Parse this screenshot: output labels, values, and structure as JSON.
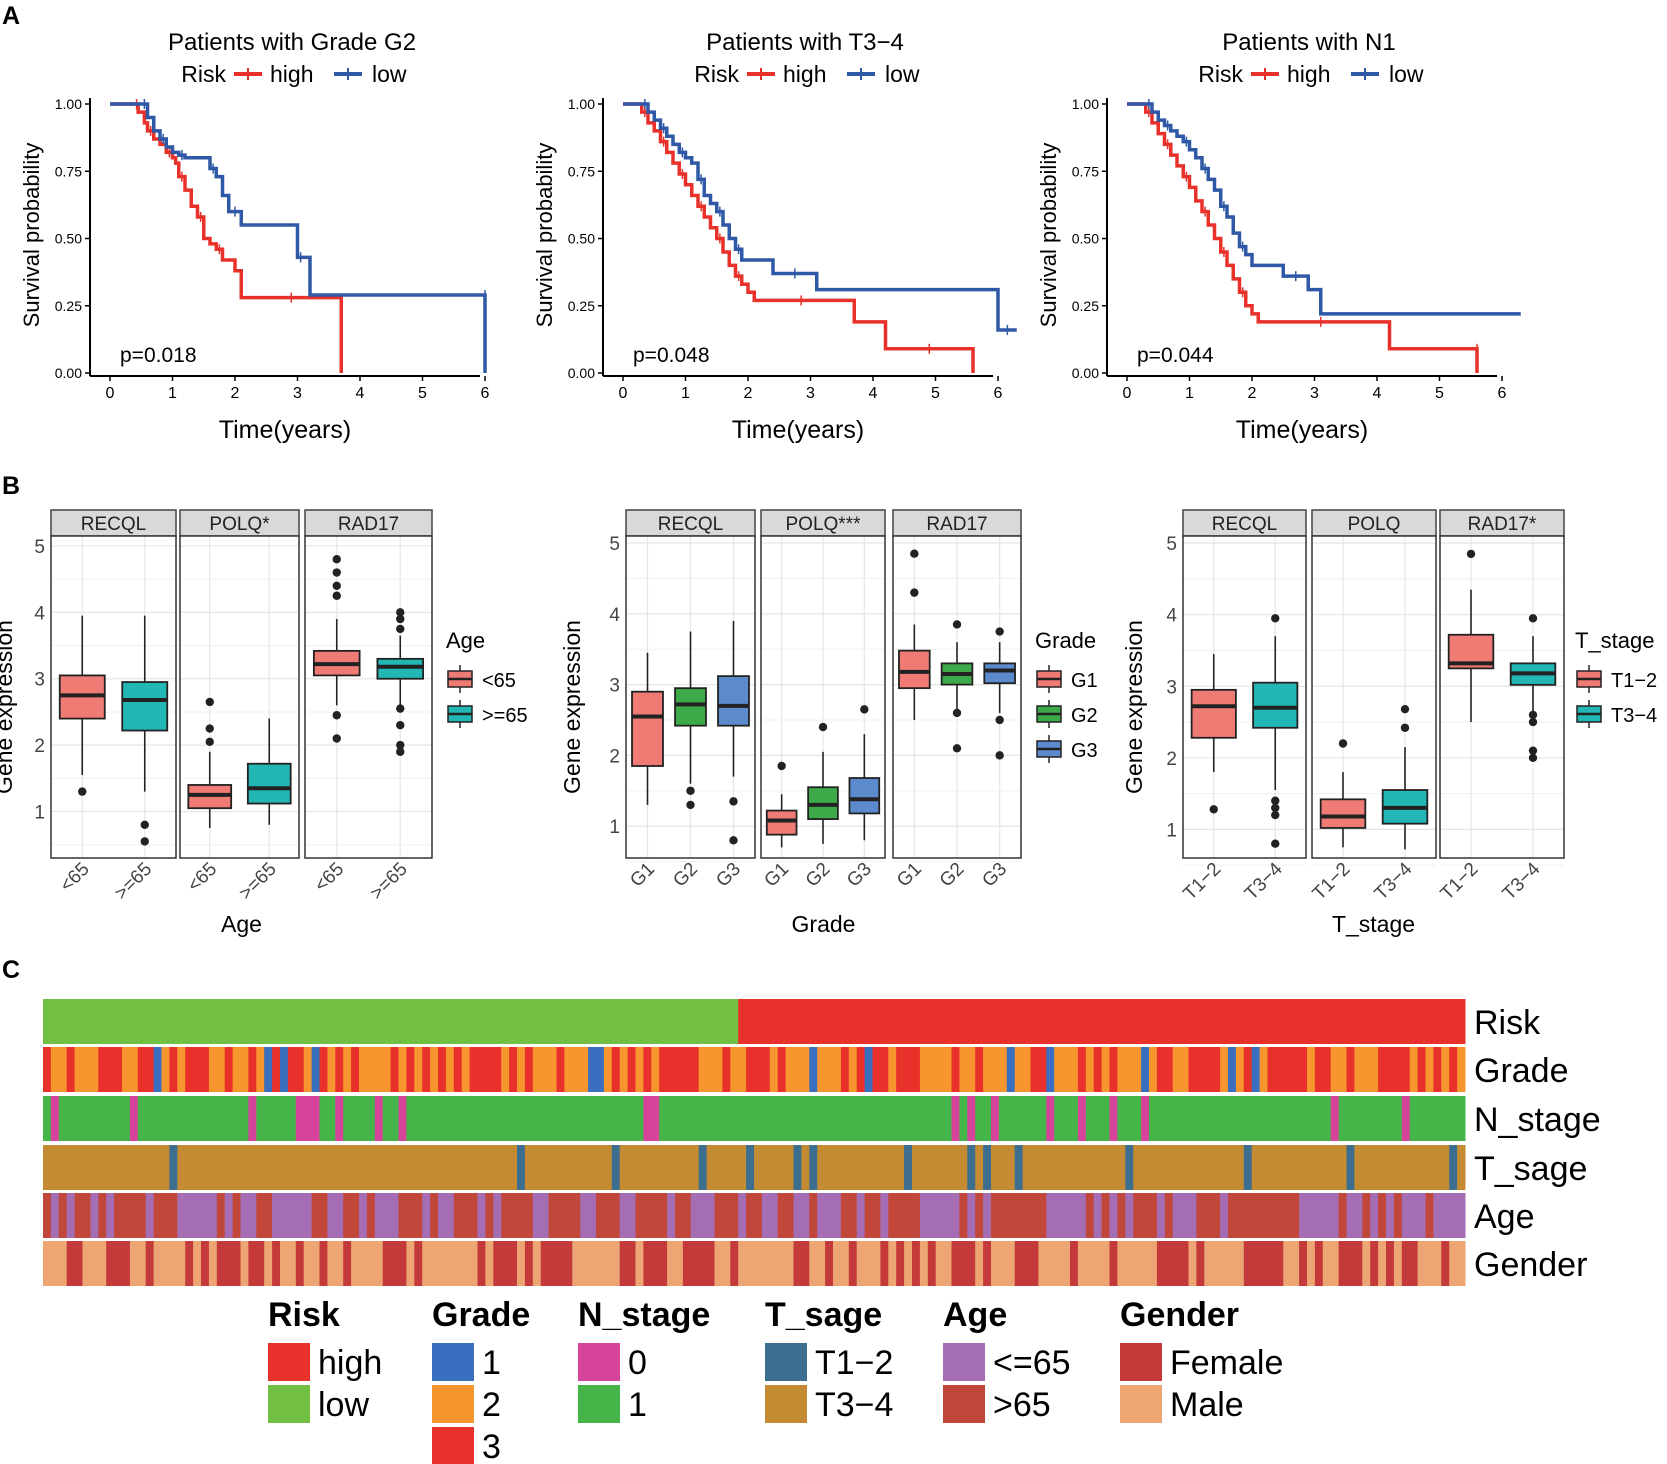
{
  "panel_labels": {
    "a": "A",
    "b": "B",
    "c": "C"
  },
  "colors": {
    "high": "#e8312a",
    "low": "#2f58a6",
    "lt65": "#f07a74",
    "ge65": "#22b7b4",
    "g1": "#f07a74",
    "g2": "#3caa48",
    "g3": "#5b8bcc",
    "t12": "#f07a74",
    "t34": "#22b7b4",
    "strip": "#d9d9d9",
    "grid": "#e6e6e6"
  },
  "km_common": {
    "ylabel": "Survival probability",
    "xlabel": "Time(years)",
    "legend_title": "Risk",
    "legend_high": "high",
    "legend_low": "low",
    "yticks": [
      "0.00",
      "0.25",
      "0.50",
      "0.75",
      "1.00"
    ],
    "xticks": [
      "0",
      "1",
      "2",
      "3",
      "4",
      "5",
      "6"
    ]
  },
  "box_common": {
    "ylabel": "Gene expression",
    "yticks": [
      "1",
      "2",
      "3",
      "4",
      "5"
    ]
  },
  "chart_data": [
    {
      "type": "line",
      "subtype": "kaplan-meier",
      "title": "Patients with Grade G2",
      "pvalue": "p=0.018",
      "xlim": [
        0,
        6.3
      ],
      "ylim": [
        0,
        1
      ],
      "series": [
        {
          "name": "high",
          "x": [
            0.0,
            0.4,
            0.45,
            0.55,
            0.6,
            0.7,
            0.8,
            0.9,
            1.0,
            1.05,
            1.1,
            1.2,
            1.3,
            1.4,
            1.5,
            1.6,
            1.7,
            1.8,
            2.0,
            2.1,
            3.7,
            3.7
          ],
          "y": [
            1.0,
            1.0,
            0.97,
            0.93,
            0.9,
            0.87,
            0.85,
            0.82,
            0.8,
            0.78,
            0.73,
            0.68,
            0.62,
            0.58,
            0.5,
            0.48,
            0.46,
            0.42,
            0.38,
            0.28,
            0.28,
            0.0
          ]
        },
        {
          "name": "low",
          "x": [
            0.0,
            0.5,
            0.6,
            0.7,
            0.8,
            0.9,
            1.0,
            1.1,
            1.2,
            1.3,
            1.6,
            1.7,
            1.8,
            1.9,
            2.1,
            2.9,
            3.0,
            3.1,
            3.2,
            6.0,
            6.0
          ],
          "y": [
            1.0,
            1.0,
            0.95,
            0.9,
            0.87,
            0.84,
            0.82,
            0.81,
            0.8,
            0.8,
            0.76,
            0.73,
            0.66,
            0.6,
            0.55,
            0.55,
            0.43,
            0.43,
            0.29,
            0.29,
            0.0
          ]
        }
      ]
    },
    {
      "type": "line",
      "subtype": "kaplan-meier",
      "title": "Patients with T3−4",
      "pvalue": "p=0.048",
      "xlim": [
        0,
        6.3
      ],
      "ylim": [
        0,
        1
      ],
      "series": [
        {
          "name": "high",
          "x": [
            0.0,
            0.3,
            0.4,
            0.5,
            0.6,
            0.7,
            0.8,
            0.9,
            1.0,
            1.1,
            1.2,
            1.3,
            1.4,
            1.5,
            1.6,
            1.7,
            1.8,
            1.9,
            2.0,
            2.1,
            3.6,
            3.7,
            4.2,
            5.6,
            5.6
          ],
          "y": [
            1.0,
            0.97,
            0.93,
            0.9,
            0.86,
            0.82,
            0.78,
            0.74,
            0.7,
            0.66,
            0.62,
            0.58,
            0.54,
            0.5,
            0.45,
            0.4,
            0.36,
            0.33,
            0.3,
            0.27,
            0.27,
            0.19,
            0.09,
            0.09,
            0.0
          ]
        },
        {
          "name": "low",
          "x": [
            0.0,
            0.3,
            0.4,
            0.5,
            0.6,
            0.7,
            0.8,
            0.9,
            1.0,
            1.1,
            1.2,
            1.3,
            1.4,
            1.5,
            1.6,
            1.7,
            1.8,
            1.9,
            2.0,
            2.4,
            3.1,
            5.9,
            6.0,
            6.3
          ],
          "y": [
            1.0,
            1.0,
            0.97,
            0.94,
            0.91,
            0.88,
            0.85,
            0.82,
            0.8,
            0.78,
            0.72,
            0.66,
            0.63,
            0.6,
            0.55,
            0.5,
            0.46,
            0.42,
            0.42,
            0.37,
            0.31,
            0.31,
            0.16,
            0.16
          ]
        }
      ]
    },
    {
      "type": "line",
      "subtype": "kaplan-meier",
      "title": "Patients with N1",
      "pvalue": "p=0.044",
      "xlim": [
        0,
        6.3
      ],
      "ylim": [
        0,
        1
      ],
      "series": [
        {
          "name": "high",
          "x": [
            0.0,
            0.3,
            0.4,
            0.5,
            0.6,
            0.7,
            0.8,
            0.9,
            1.0,
            1.1,
            1.2,
            1.3,
            1.4,
            1.5,
            1.6,
            1.7,
            1.8,
            1.9,
            2.0,
            2.1,
            4.1,
            4.2,
            5.6,
            5.6
          ],
          "y": [
            1.0,
            0.97,
            0.93,
            0.89,
            0.85,
            0.81,
            0.77,
            0.73,
            0.69,
            0.64,
            0.6,
            0.55,
            0.5,
            0.45,
            0.4,
            0.35,
            0.3,
            0.25,
            0.22,
            0.19,
            0.19,
            0.09,
            0.09,
            0.0
          ]
        },
        {
          "name": "low",
          "x": [
            0.0,
            0.3,
            0.4,
            0.5,
            0.6,
            0.7,
            0.8,
            0.9,
            1.0,
            1.1,
            1.2,
            1.3,
            1.4,
            1.5,
            1.6,
            1.7,
            1.8,
            1.9,
            2.0,
            2.5,
            2.9,
            3.1,
            6.3
          ],
          "y": [
            1.0,
            1.0,
            0.97,
            0.94,
            0.92,
            0.9,
            0.88,
            0.86,
            0.83,
            0.8,
            0.76,
            0.72,
            0.68,
            0.62,
            0.58,
            0.52,
            0.47,
            0.44,
            0.4,
            0.36,
            0.31,
            0.22,
            0.22
          ]
        }
      ]
    },
    {
      "type": "box",
      "xlabel": "Age",
      "legend_title": "Age",
      "ylim": [
        0.3,
        5.15
      ],
      "groups": [
        "<65",
        ">=65"
      ],
      "group_colors": [
        "lt65",
        "ge65"
      ],
      "facets": [
        {
          "name": "RECQL",
          "boxes": [
            {
              "min": 1.55,
              "q1": 2.4,
              "med": 2.75,
              "q3": 3.05,
              "max": 3.95,
              "out": [
                1.3
              ]
            },
            {
              "min": 1.3,
              "q1": 2.22,
              "med": 2.68,
              "q3": 2.95,
              "max": 3.95,
              "out": [
                0.8,
                0.55
              ]
            }
          ]
        },
        {
          "name": "POLQ*",
          "boxes": [
            {
              "min": 0.75,
              "q1": 1.05,
              "med": 1.25,
              "q3": 1.4,
              "max": 1.9,
              "out": [
                2.05,
                2.25,
                2.65
              ]
            },
            {
              "min": 0.8,
              "q1": 1.12,
              "med": 1.35,
              "q3": 1.72,
              "max": 2.4,
              "out": []
            }
          ]
        },
        {
          "name": "RAD17",
          "boxes": [
            {
              "min": 2.6,
              "q1": 3.05,
              "med": 3.22,
              "q3": 3.42,
              "max": 3.9,
              "out": [
                2.1,
                2.45,
                4.25,
                4.4,
                4.6,
                4.8
              ]
            },
            {
              "min": 2.6,
              "q1": 3.0,
              "med": 3.18,
              "q3": 3.3,
              "max": 3.65,
              "out": [
                1.9,
                2.0,
                2.3,
                2.55,
                3.75,
                3.9,
                4.0
              ]
            }
          ]
        }
      ]
    },
    {
      "type": "box",
      "xlabel": "Grade",
      "legend_title": "Grade",
      "ylim": [
        0.55,
        5.1
      ],
      "groups": [
        "G1",
        "G2",
        "G3"
      ],
      "group_colors": [
        "g1",
        "g2",
        "g3"
      ],
      "facets": [
        {
          "name": "RECQL",
          "boxes": [
            {
              "min": 1.3,
              "q1": 1.85,
              "med": 2.55,
              "q3": 2.9,
              "max": 3.45,
              "out": []
            },
            {
              "min": 1.6,
              "q1": 2.42,
              "med": 2.72,
              "q3": 2.95,
              "max": 3.75,
              "out": [
                1.3,
                1.5
              ]
            },
            {
              "min": 1.7,
              "q1": 2.42,
              "med": 2.7,
              "q3": 3.12,
              "max": 3.9,
              "out": [
                0.8,
                1.35
              ]
            }
          ]
        },
        {
          "name": "POLQ***",
          "boxes": [
            {
              "min": 0.7,
              "q1": 0.88,
              "med": 1.08,
              "q3": 1.22,
              "max": 1.45,
              "out": [
                1.85
              ]
            },
            {
              "min": 0.75,
              "q1": 1.1,
              "med": 1.3,
              "q3": 1.55,
              "max": 2.05,
              "out": [
                2.4
              ]
            },
            {
              "min": 0.8,
              "q1": 1.18,
              "med": 1.38,
              "q3": 1.68,
              "max": 2.3,
              "out": [
                2.65
              ]
            }
          ]
        },
        {
          "name": "RAD17",
          "boxes": [
            {
              "min": 2.5,
              "q1": 2.95,
              "med": 3.18,
              "q3": 3.48,
              "max": 3.85,
              "out": [
                4.3,
                4.85
              ]
            },
            {
              "min": 2.6,
              "q1": 3.0,
              "med": 3.15,
              "q3": 3.3,
              "max": 3.6,
              "out": [
                2.1,
                2.6,
                3.85
              ]
            },
            {
              "min": 2.6,
              "q1": 3.02,
              "med": 3.2,
              "q3": 3.3,
              "max": 3.6,
              "out": [
                2.0,
                2.5,
                3.75
              ]
            }
          ]
        }
      ]
    },
    {
      "type": "box",
      "xlabel": "T_stage",
      "legend_title": "T_stage",
      "ylim": [
        0.6,
        5.1
      ],
      "groups": [
        "T1−2",
        "T3−4"
      ],
      "group_colors": [
        "t12",
        "t34"
      ],
      "facets": [
        {
          "name": "RECQL",
          "boxes": [
            {
              "min": 1.8,
              "q1": 2.28,
              "med": 2.72,
              "q3": 2.95,
              "max": 3.45,
              "out": [
                1.28
              ]
            },
            {
              "min": 1.55,
              "q1": 2.42,
              "med": 2.7,
              "q3": 3.05,
              "max": 3.7,
              "out": [
                0.8,
                1.2,
                1.3,
                1.4,
                3.95
              ]
            }
          ]
        },
        {
          "name": "POLQ",
          "boxes": [
            {
              "min": 0.75,
              "q1": 1.02,
              "med": 1.18,
              "q3": 1.42,
              "max": 1.8,
              "out": [
                2.2
              ]
            },
            {
              "min": 0.72,
              "q1": 1.08,
              "med": 1.3,
              "q3": 1.55,
              "max": 2.15,
              "out": [
                2.42,
                2.68
              ]
            }
          ]
        },
        {
          "name": "RAD17*",
          "boxes": [
            {
              "min": 2.5,
              "q1": 3.25,
              "med": 3.32,
              "q3": 3.72,
              "max": 4.35,
              "out": [
                4.85
              ]
            },
            {
              "min": 2.6,
              "q1": 3.02,
              "med": 3.18,
              "q3": 3.32,
              "max": 3.7,
              "out": [
                2.0,
                2.1,
                2.5,
                2.6,
                3.95
              ]
            }
          ]
        }
      ]
    },
    {
      "type": "heatmap",
      "subtype": "annotation-tracks",
      "rows": [
        "Risk",
        "Grade",
        "N_stage",
        "T_sage",
        "Age",
        "Gender"
      ],
      "n_samples": 180,
      "low_count": 88,
      "legends": [
        {
          "title": "Risk",
          "items": [
            {
              "label": "high",
              "color": "#e8312a"
            },
            {
              "label": "low",
              "color": "#72c043"
            }
          ]
        },
        {
          "title": "Grade",
          "items": [
            {
              "label": "1",
              "color": "#3a6fbf"
            },
            {
              "label": "2",
              "color": "#f7952f"
            },
            {
              "label": "3",
              "color": "#e8312a"
            }
          ]
        },
        {
          "title": "N_stage",
          "items": [
            {
              "label": "0",
              "color": "#d6439a"
            },
            {
              "label": "1",
              "color": "#46b549"
            }
          ]
        },
        {
          "title": "T_sage",
          "items": [
            {
              "label": "T1−2",
              "color": "#3b6e8f"
            },
            {
              "label": "T3−4",
              "color": "#c48b33"
            }
          ]
        },
        {
          "title": "Age",
          "items": [
            {
              "label": "<=65",
              "color": "#a56db3"
            },
            {
              "label": ">65",
              "color": "#c0473a"
            }
          ]
        },
        {
          "title": "Gender",
          "items": [
            {
              "label": "Female",
              "color": "#c4393a"
            },
            {
              "label": "Male",
              "color": "#eda673"
            }
          ]
        }
      ]
    }
  ]
}
